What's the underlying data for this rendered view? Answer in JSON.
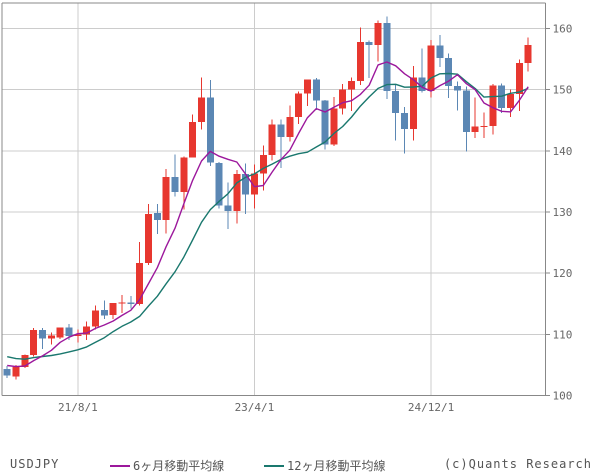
{
  "footer": {
    "symbol": "USDJPY",
    "copyright": "(c)Quants Research"
  },
  "legend": [
    {
      "label": "6ヶ月移動平均線",
      "color": "#9c189c"
    },
    {
      "label": "12ヶ月移動平均線",
      "color": "#1a786e"
    }
  ],
  "colors": {
    "background": "#ffffff",
    "grid": "#cccccc",
    "border": "#888888",
    "text": "#666666",
    "up": "#e7372f",
    "down": "#5b87b4",
    "ma6": "#9c189c",
    "ma12": "#1a786e"
  },
  "chart_data": {
    "type": "candlestick",
    "symbol": "USDJPY",
    "interval": "monthly",
    "grid": true,
    "ylim": [
      100,
      164
    ],
    "y_ticks": [
      100,
      110,
      120,
      130,
      140,
      150,
      160
    ],
    "x_tick_labels": [
      {
        "index": 8,
        "label": "21/8/1"
      },
      {
        "index": 28,
        "label": "23/4/1"
      },
      {
        "index": 48,
        "label": "24/12/1"
      }
    ],
    "candles": [
      {
        "date": "2020/12",
        "o": 104.3,
        "h": 104.8,
        "l": 102.9,
        "c": 103.3
      },
      {
        "date": "2021/1",
        "o": 103.1,
        "h": 105.0,
        "l": 102.6,
        "c": 104.7
      },
      {
        "date": "2021/2",
        "o": 104.7,
        "h": 106.7,
        "l": 104.5,
        "c": 106.6
      },
      {
        "date": "2021/3",
        "o": 106.6,
        "h": 111.0,
        "l": 106.4,
        "c": 110.7
      },
      {
        "date": "2021/4",
        "o": 110.7,
        "h": 111.0,
        "l": 107.6,
        "c": 109.3
      },
      {
        "date": "2021/5",
        "o": 109.3,
        "h": 110.3,
        "l": 108.3,
        "c": 109.8
      },
      {
        "date": "2021/6",
        "o": 109.5,
        "h": 111.1,
        "l": 109.2,
        "c": 111.1
      },
      {
        "date": "2021/7",
        "o": 111.1,
        "h": 111.7,
        "l": 109.1,
        "c": 109.7
      },
      {
        "date": "2021/8",
        "o": 109.7,
        "h": 110.8,
        "l": 108.7,
        "c": 110.0
      },
      {
        "date": "2021/9",
        "o": 110.0,
        "h": 112.1,
        "l": 109.1,
        "c": 111.3
      },
      {
        "date": "2021/10",
        "o": 111.3,
        "h": 114.7,
        "l": 110.8,
        "c": 113.9
      },
      {
        "date": "2021/11",
        "o": 114.0,
        "h": 115.5,
        "l": 112.5,
        "c": 113.1
      },
      {
        "date": "2021/12",
        "o": 113.2,
        "h": 115.1,
        "l": 112.5,
        "c": 115.1
      },
      {
        "date": "2022/1",
        "o": 115.1,
        "h": 116.4,
        "l": 113.5,
        "c": 115.2
      },
      {
        "date": "2022/2",
        "o": 115.2,
        "h": 116.3,
        "l": 114.2,
        "c": 115.0
      },
      {
        "date": "2022/3",
        "o": 115.0,
        "h": 125.1,
        "l": 114.7,
        "c": 121.7
      },
      {
        "date": "2022/4",
        "o": 121.7,
        "h": 131.3,
        "l": 121.3,
        "c": 129.7
      },
      {
        "date": "2022/5",
        "o": 129.8,
        "h": 131.3,
        "l": 126.4,
        "c": 128.7
      },
      {
        "date": "2022/6",
        "o": 128.7,
        "h": 137.0,
        "l": 126.5,
        "c": 135.7
      },
      {
        "date": "2022/7",
        "o": 135.7,
        "h": 139.4,
        "l": 132.5,
        "c": 133.3
      },
      {
        "date": "2022/8",
        "o": 133.3,
        "h": 139.1,
        "l": 130.4,
        "c": 138.9
      },
      {
        "date": "2022/9",
        "o": 138.9,
        "h": 145.9,
        "l": 138.9,
        "c": 144.7
      },
      {
        "date": "2022/10",
        "o": 144.7,
        "h": 152.0,
        "l": 143.5,
        "c": 148.7
      },
      {
        "date": "2022/11",
        "o": 148.7,
        "h": 151.6,
        "l": 137.5,
        "c": 138.1
      },
      {
        "date": "2022/12",
        "o": 138.0,
        "h": 138.2,
        "l": 130.6,
        "c": 131.1
      },
      {
        "date": "2023/1",
        "o": 131.1,
        "h": 134.8,
        "l": 127.2,
        "c": 130.2
      },
      {
        "date": "2023/2",
        "o": 130.2,
        "h": 136.9,
        "l": 128.1,
        "c": 136.2
      },
      {
        "date": "2023/3",
        "o": 136.2,
        "h": 137.9,
        "l": 129.7,
        "c": 132.9
      },
      {
        "date": "2023/4",
        "o": 132.9,
        "h": 137.8,
        "l": 130.6,
        "c": 136.3
      },
      {
        "date": "2023/5",
        "o": 136.3,
        "h": 140.9,
        "l": 133.5,
        "c": 139.3
      },
      {
        "date": "2023/6",
        "o": 139.3,
        "h": 145.1,
        "l": 138.4,
        "c": 144.3
      },
      {
        "date": "2023/7",
        "o": 144.3,
        "h": 145.1,
        "l": 137.2,
        "c": 142.3
      },
      {
        "date": "2023/8",
        "o": 142.3,
        "h": 147.4,
        "l": 141.5,
        "c": 145.5
      },
      {
        "date": "2023/9",
        "o": 145.5,
        "h": 149.7,
        "l": 144.4,
        "c": 149.4
      },
      {
        "date": "2023/10",
        "o": 149.4,
        "h": 151.7,
        "l": 147.3,
        "c": 151.7
      },
      {
        "date": "2023/11",
        "o": 151.7,
        "h": 151.9,
        "l": 146.7,
        "c": 148.2
      },
      {
        "date": "2023/12",
        "o": 148.2,
        "h": 148.3,
        "l": 140.2,
        "c": 141.0
      },
      {
        "date": "2024/1",
        "o": 141.0,
        "h": 148.8,
        "l": 140.8,
        "c": 146.9
      },
      {
        "date": "2024/2",
        "o": 146.9,
        "h": 150.9,
        "l": 145.9,
        "c": 150.0
      },
      {
        "date": "2024/3",
        "o": 150.0,
        "h": 152.0,
        "l": 146.5,
        "c": 151.4
      },
      {
        "date": "2024/4",
        "o": 151.4,
        "h": 160.2,
        "l": 150.8,
        "c": 157.8
      },
      {
        "date": "2024/5",
        "o": 157.8,
        "h": 158.0,
        "l": 151.9,
        "c": 157.3
      },
      {
        "date": "2024/6",
        "o": 157.3,
        "h": 161.3,
        "l": 154.6,
        "c": 160.9
      },
      {
        "date": "2024/7",
        "o": 160.9,
        "h": 162.0,
        "l": 148.5,
        "c": 149.8
      },
      {
        "date": "2024/8",
        "o": 149.8,
        "h": 150.9,
        "l": 141.7,
        "c": 146.2
      },
      {
        "date": "2024/9",
        "o": 146.2,
        "h": 147.2,
        "l": 139.6,
        "c": 143.6
      },
      {
        "date": "2024/10",
        "o": 143.6,
        "h": 153.9,
        "l": 141.7,
        "c": 152.0
      },
      {
        "date": "2024/11",
        "o": 152.0,
        "h": 156.7,
        "l": 149.5,
        "c": 149.8
      },
      {
        "date": "2024/12",
        "o": 149.8,
        "h": 158.1,
        "l": 148.7,
        "c": 157.2
      },
      {
        "date": "2025/1",
        "o": 157.2,
        "h": 158.9,
        "l": 153.7,
        "c": 155.2
      },
      {
        "date": "2025/2",
        "o": 155.2,
        "h": 155.9,
        "l": 148.6,
        "c": 150.6
      },
      {
        "date": "2025/3",
        "o": 150.6,
        "h": 151.3,
        "l": 146.6,
        "c": 149.9
      },
      {
        "date": "2025/4",
        "o": 149.9,
        "h": 150.5,
        "l": 139.9,
        "c": 143.1
      },
      {
        "date": "2025/5",
        "o": 143.1,
        "h": 148.7,
        "l": 142.1,
        "c": 144.0
      },
      {
        "date": "2025/6",
        "o": 144.0,
        "h": 146.3,
        "l": 142.1,
        "c": 144.1
      },
      {
        "date": "2025/7",
        "o": 144.1,
        "h": 150.9,
        "l": 142.7,
        "c": 150.7
      },
      {
        "date": "2025/8",
        "o": 150.7,
        "h": 151.0,
        "l": 146.2,
        "c": 147.0
      },
      {
        "date": "2025/9",
        "o": 147.0,
        "h": 150.0,
        "l": 145.5,
        "c": 149.3
      },
      {
        "date": "2025/10",
        "o": 149.3,
        "h": 154.9,
        "l": 146.5,
        "c": 154.4
      },
      {
        "date": "2025/11",
        "o": 154.4,
        "h": 158.5,
        "l": 153.0,
        "c": 157.3
      }
    ],
    "series": [
      {
        "name": "6ヶ月移動平均線",
        "color": "#9c189c",
        "values": [
          104.91,
          104.72,
          104.83,
          105.7,
          106.48,
          107.39,
          108.7,
          109.53,
          110.1,
          110.2,
          110.97,
          111.52,
          112.18,
          113.1,
          113.93,
          115.67,
          118.3,
          120.9,
          124.33,
          127.35,
          131.33,
          135.17,
          138.33,
          139.9,
          139.13,
          138.62,
          138.17,
          136.2,
          134.13,
          134.33,
          136.53,
          138.55,
          140.1,
          142.85,
          145.42,
          146.9,
          146.35,
          147.12,
          147.87,
          148.2,
          149.22,
          150.73,
          154.05,
          154.53,
          153.9,
          152.6,
          151.63,
          150.38,
          149.77,
          150.67,
          151.4,
          152.45,
          150.97,
          150.0,
          147.82,
          147.07,
          146.47,
          146.37,
          148.25,
          150.47
        ]
      },
      {
        "name": "12ヶ月移動平均線",
        "color": "#1a786e",
        "values": [
          106.35,
          106.04,
          105.94,
          106.2,
          106.38,
          106.54,
          106.8,
          107.13,
          107.47,
          107.95,
          108.72,
          109.45,
          110.44,
          111.32,
          112.02,
          112.93,
          114.63,
          116.21,
          118.26,
          120.23,
          122.63,
          125.42,
          128.32,
          130.4,
          131.73,
          132.98,
          134.75,
          135.68,
          136.23,
          137.12,
          137.83,
          138.58,
          139.13,
          139.53,
          139.78,
          140.62,
          141.44,
          142.83,
          143.98,
          145.53,
          147.32,
          148.82,
          150.2,
          150.83,
          150.88,
          150.4,
          150.43,
          150.56,
          151.91,
          152.6,
          152.65,
          152.53,
          151.3,
          150.19,
          148.79,
          148.87,
          148.93,
          149.41,
          149.61,
          150.23
        ]
      }
    ]
  }
}
